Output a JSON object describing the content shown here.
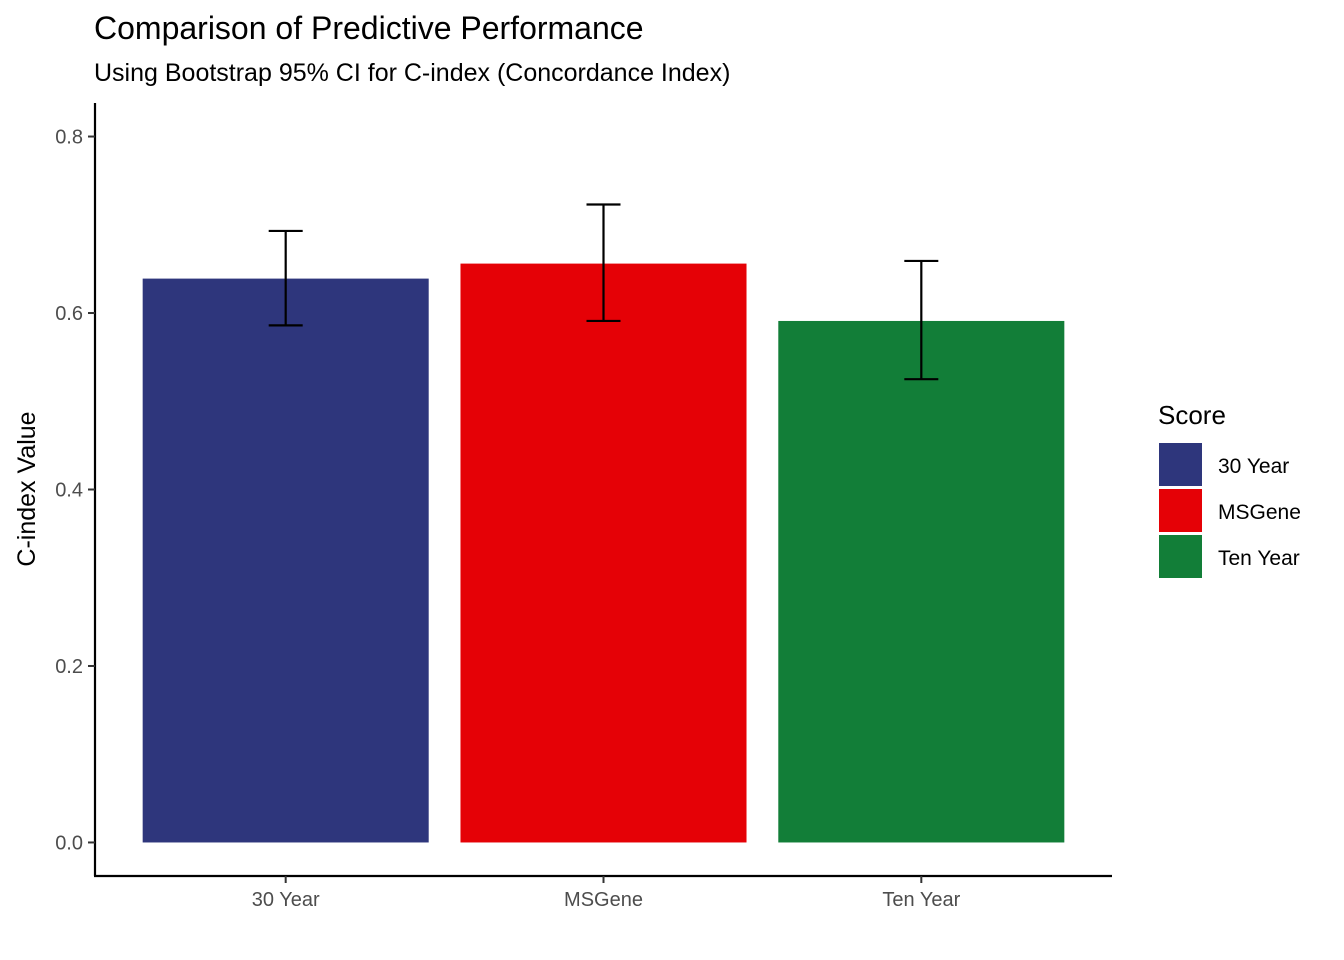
{
  "chart_data": {
    "type": "bar",
    "title": "Comparison of Predictive Performance",
    "subtitle": "Using Bootstrap 95% CI for C-index (Concordance Index)",
    "xlabel": "",
    "ylabel": "C-index Value",
    "categories": [
      "30 Year",
      "MSGene",
      "Ten Year"
    ],
    "values": [
      0.639,
      0.656,
      0.591
    ],
    "ci_lower": [
      0.586,
      0.591,
      0.525
    ],
    "ci_upper": [
      0.693,
      0.723,
      0.659
    ],
    "colors": [
      "#2E367C",
      "#E50106",
      "#127E38"
    ],
    "ylim": [
      -0.038,
      0.838
    ],
    "yticks": [
      0.0,
      0.2,
      0.4,
      0.6,
      0.8
    ],
    "ytick_labels": [
      "0.0",
      "0.2",
      "0.4",
      "0.6",
      "0.8"
    ],
    "grid": false,
    "legend": {
      "title": "Score",
      "position": "right",
      "entries": [
        "30 Year",
        "MSGene",
        "Ten Year"
      ]
    }
  }
}
